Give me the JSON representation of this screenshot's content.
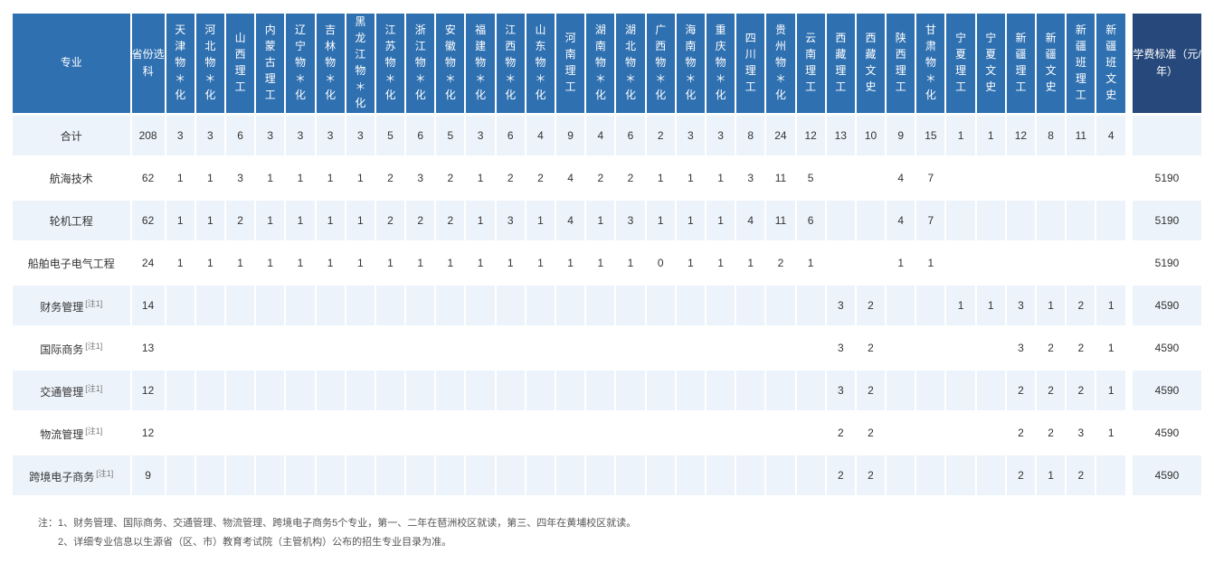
{
  "colors": {
    "header_bg": "#2f70b1",
    "header_fee_bg": "#26487a",
    "row_bg": "#ecf3fa",
    "row_alt_bg": "#ffffff",
    "text": "#333333"
  },
  "header": {
    "major": "专业",
    "selection": "省份选科",
    "fee": "学费标准（元/年）",
    "provinces": [
      "天津 物＊化",
      "河北 物＊化",
      "山西 理工",
      "内蒙古 理工",
      "辽宁 物＊化",
      "吉林 物＊化",
      "黑龙江 物＊化",
      "江苏 物＊化",
      "浙江 物＊化",
      "安徽 物＊化",
      "福建 物＊化",
      "江西 物＊化",
      "山东 物＊化",
      "河南 理工",
      "湖南 物＊化",
      "湖北 物＊化",
      "广西 物＊化",
      "海南 物＊化",
      "重庆 物＊化",
      "四川 理工",
      "贵州 物＊化",
      "云南 理工",
      "西藏 理工",
      "西藏 文史",
      "陕西 理工",
      "甘肃 物＊化",
      "宁夏 理工",
      "宁夏 文史",
      "新疆 理工",
      "新疆 文史",
      "新疆班 理工",
      "新疆班 文史"
    ]
  },
  "majors": [
    {
      "name": "合计",
      "note": "",
      "total": "208",
      "fee": "",
      "cells": [
        "3",
        "3",
        "6",
        "3",
        "3",
        "3",
        "3",
        "5",
        "6",
        "5",
        "3",
        "6",
        "4",
        "9",
        "4",
        "6",
        "2",
        "3",
        "3",
        "8",
        "24",
        "12",
        "13",
        "10",
        "9",
        "15",
        "1",
        "1",
        "12",
        "8",
        "11",
        "4"
      ]
    },
    {
      "name": "航海技术",
      "note": "",
      "total": "62",
      "fee": "5190",
      "cells": [
        "1",
        "1",
        "3",
        "1",
        "1",
        "1",
        "1",
        "2",
        "3",
        "2",
        "1",
        "2",
        "2",
        "4",
        "2",
        "2",
        "1",
        "1",
        "1",
        "3",
        "11",
        "5",
        "",
        "",
        "4",
        "7",
        "",
        "",
        "",
        "",
        "",
        ""
      ]
    },
    {
      "name": "轮机工程",
      "note": "",
      "total": "62",
      "fee": "5190",
      "cells": [
        "1",
        "1",
        "2",
        "1",
        "1",
        "1",
        "1",
        "2",
        "2",
        "2",
        "1",
        "3",
        "1",
        "4",
        "1",
        "3",
        "1",
        "1",
        "1",
        "4",
        "11",
        "6",
        "",
        "",
        "4",
        "7",
        "",
        "",
        "",
        "",
        "",
        ""
      ]
    },
    {
      "name": "船舶电子电气工程",
      "note": "",
      "total": "24",
      "fee": "5190",
      "cells": [
        "1",
        "1",
        "1",
        "1",
        "1",
        "1",
        "1",
        "1",
        "1",
        "1",
        "1",
        "1",
        "1",
        "1",
        "1",
        "1",
        "0",
        "1",
        "1",
        "1",
        "2",
        "1",
        "",
        "",
        "1",
        "1",
        "",
        "",
        "",
        "",
        "",
        ""
      ]
    },
    {
      "name": "财务管理",
      "note": "[注1]",
      "total": "14",
      "fee": "4590",
      "cells": [
        "",
        "",
        "",
        "",
        "",
        "",
        "",
        "",
        "",
        "",
        "",
        "",
        "",
        "",
        "",
        "",
        "",
        "",
        "",
        "",
        "",
        "",
        "3",
        "2",
        "",
        "",
        "1",
        "1",
        "3",
        "1",
        "2",
        "1"
      ]
    },
    {
      "name": "国际商务",
      "note": "[注1]",
      "total": "13",
      "fee": "4590",
      "cells": [
        "",
        "",
        "",
        "",
        "",
        "",
        "",
        "",
        "",
        "",
        "",
        "",
        "",
        "",
        "",
        "",
        "",
        "",
        "",
        "",
        "",
        "",
        "3",
        "2",
        "",
        "",
        "",
        "",
        "3",
        "2",
        "2",
        "1"
      ]
    },
    {
      "name": "交通管理",
      "note": "[注1]",
      "total": "12",
      "fee": "4590",
      "cells": [
        "",
        "",
        "",
        "",
        "",
        "",
        "",
        "",
        "",
        "",
        "",
        "",
        "",
        "",
        "",
        "",
        "",
        "",
        "",
        "",
        "",
        "",
        "3",
        "2",
        "",
        "",
        "",
        "",
        "2",
        "2",
        "2",
        "1"
      ]
    },
    {
      "name": "物流管理",
      "note": "[注1]",
      "total": "12",
      "fee": "4590",
      "cells": [
        "",
        "",
        "",
        "",
        "",
        "",
        "",
        "",
        "",
        "",
        "",
        "",
        "",
        "",
        "",
        "",
        "",
        "",
        "",
        "",
        "",
        "",
        "2",
        "2",
        "",
        "",
        "",
        "",
        "2",
        "2",
        "3",
        "1"
      ]
    },
    {
      "name": "跨境电子商务",
      "note": "[注1]",
      "total": "9",
      "fee": "4590",
      "cells": [
        "",
        "",
        "",
        "",
        "",
        "",
        "",
        "",
        "",
        "",
        "",
        "",
        "",
        "",
        "",
        "",
        "",
        "",
        "",
        "",
        "",
        "",
        "2",
        "2",
        "",
        "",
        "",
        "",
        "2",
        "1",
        "2",
        ""
      ]
    }
  ],
  "footnotes": [
    "注：1、财务管理、国际商务、交通管理、物流管理、跨境电子商务5个专业，第一、二年在琶洲校区就读，第三、四年在黄埔校区就读。",
    "　　2、详细专业信息以生源省（区、市）教育考试院（主管机构）公布的招生专业目录为准。"
  ]
}
